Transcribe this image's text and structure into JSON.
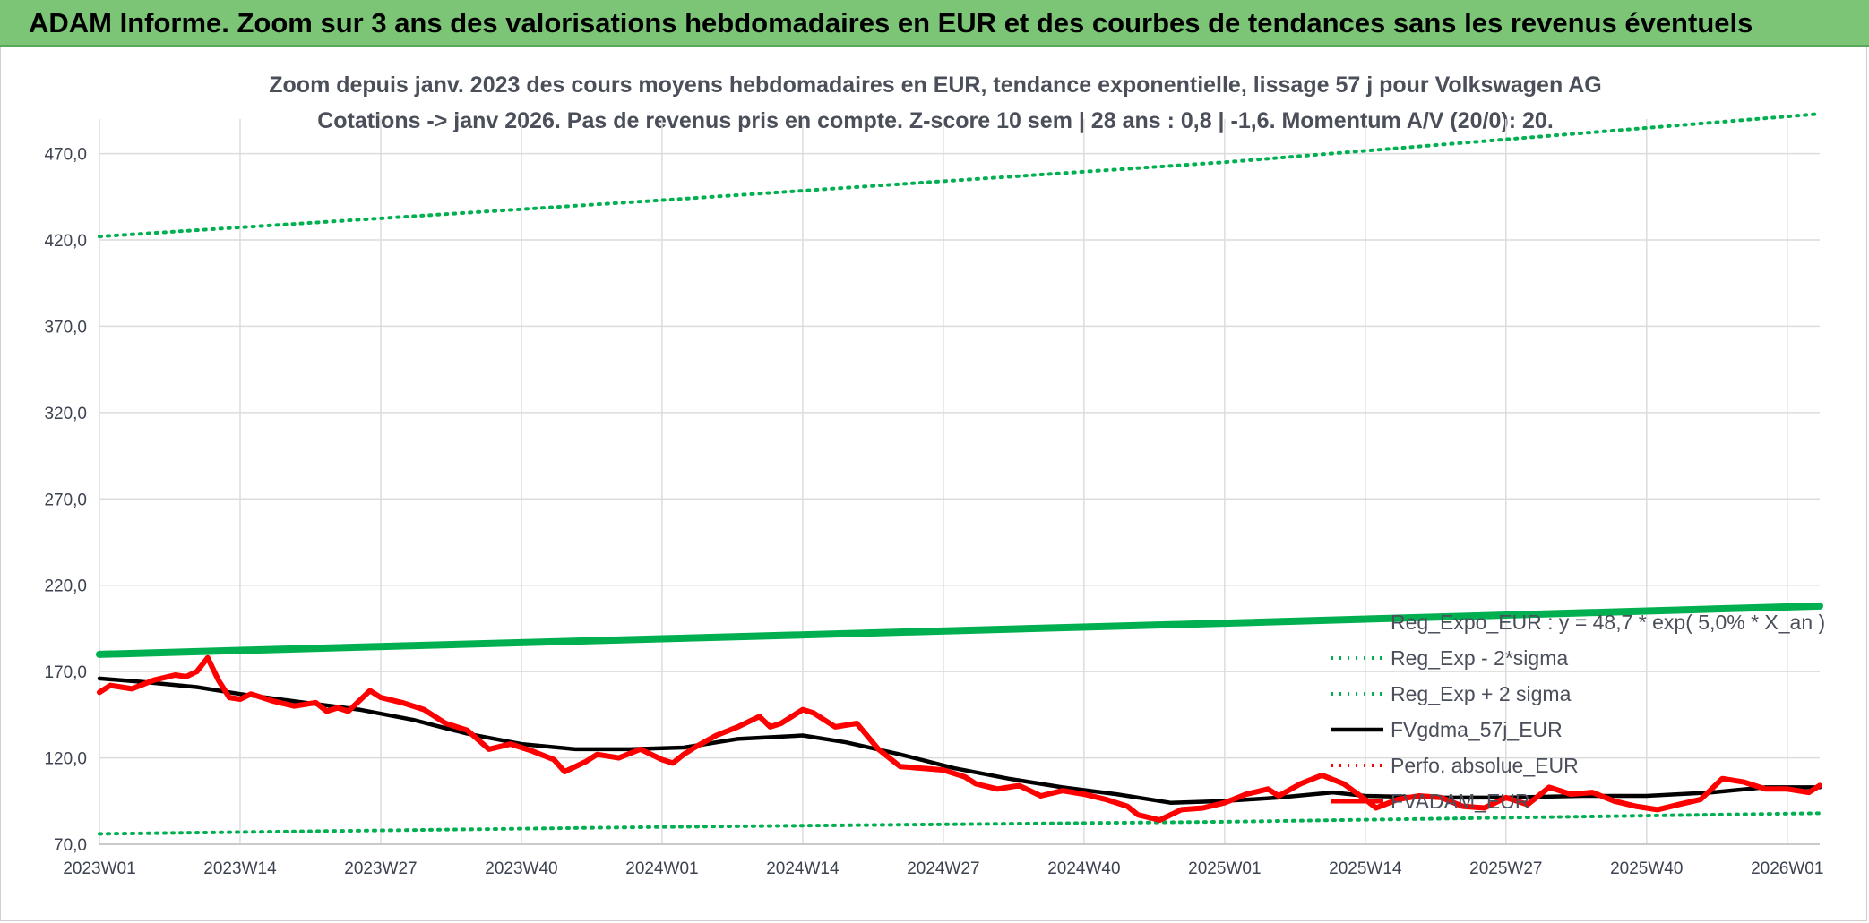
{
  "banner": {
    "title": "ADAM Informe. Zoom sur 3 ans des valorisations hebdomadaires en EUR et des courbes de tendances sans les revenus éventuels"
  },
  "chart_data": {
    "type": "line",
    "title": "",
    "subtitle_lines": [
      "Zoom depuis janv. 2023 des cours moyens hebdomadaires en EUR, tendance exponentielle, lissage 57 j pour Volkswagen AG",
      "Cotations -> janv 2026. Pas de revenus pris en compte. Z-score 10 sem | 28 ans : 0,8 | -1,6. Momentum A/V (20/0): 20."
    ],
    "xlabel": "",
    "ylabel": "",
    "ylim": [
      70,
      490
    ],
    "yticks": [
      70,
      120,
      170,
      220,
      270,
      320,
      370,
      420,
      470
    ],
    "ytick_labels": [
      "70,0",
      "120,0",
      "170,0",
      "220,0",
      "270,0",
      "320,0",
      "370,0",
      "420,0",
      "470,0"
    ],
    "xlim_weeks": [
      1,
      160
    ],
    "xticks": [
      {
        "week": 1,
        "label": "2023W01"
      },
      {
        "week": 14,
        "label": "2023W14"
      },
      {
        "week": 27,
        "label": "2023W27"
      },
      {
        "week": 40,
        "label": "2023W40"
      },
      {
        "week": 53,
        "label": "2024W01"
      },
      {
        "week": 66,
        "label": "2024W14"
      },
      {
        "week": 79,
        "label": "2024W27"
      },
      {
        "week": 92,
        "label": "2024W40"
      },
      {
        "week": 105,
        "label": "2025W01"
      },
      {
        "week": 118,
        "label": "2025W14"
      },
      {
        "week": 131,
        "label": "2025W27"
      },
      {
        "week": 144,
        "label": "2025W40"
      },
      {
        "week": 157,
        "label": "2026W01"
      }
    ],
    "grid": true,
    "legend_position": "bottom-right",
    "series": [
      {
        "name": "Reg_Expo_EUR : y = 48,7 * exp( 5,0% * X_an )",
        "style": "solid-thick",
        "color": "#00b050",
        "x": [
          1,
          53,
          105,
          160
        ],
        "y": [
          180,
          189,
          198,
          208
        ]
      },
      {
        "name": "Reg_Exp - 2*sigma",
        "style": "dotted",
        "color": "#00b050",
        "x": [
          1,
          53,
          105,
          160
        ],
        "y": [
          76,
          80,
          83,
          88
        ]
      },
      {
        "name": "Reg_Exp + 2 sigma",
        "style": "dotted",
        "color": "#00b050",
        "x": [
          1,
          53,
          105,
          160
        ],
        "y": [
          422,
          443,
          465,
          493
        ]
      },
      {
        "name": "FVgdma_57j_EUR",
        "style": "solid",
        "color": "#000000",
        "x": [
          1,
          5,
          10,
          14,
          20,
          25,
          30,
          35,
          40,
          45,
          50,
          55,
          60,
          66,
          70,
          75,
          80,
          85,
          90,
          95,
          100,
          105,
          110,
          115,
          118,
          125,
          131,
          138,
          144,
          150,
          155,
          160
        ],
        "y": [
          166,
          164,
          161,
          157,
          152,
          148,
          142,
          134,
          128,
          125,
          125,
          126,
          131,
          133,
          129,
          122,
          114,
          108,
          103,
          99,
          94,
          95,
          97,
          100,
          98,
          97,
          97,
          98,
          98,
          100,
          103,
          103
        ]
      },
      {
        "name": "Perfo. absolue_EUR",
        "style": "dotted",
        "color": "#ff0000",
        "x": [],
        "y": []
      },
      {
        "name": "FVADAM_EUR",
        "style": "solid-thick",
        "color": "#ff0000",
        "x": [
          1,
          2,
          3,
          4,
          6,
          8,
          9,
          10,
          11,
          12,
          13,
          14,
          15,
          17,
          19,
          21,
          22,
          23,
          24,
          26,
          27,
          29,
          31,
          33,
          35,
          37,
          39,
          41,
          43,
          44,
          46,
          47,
          49,
          51,
          53,
          54,
          55,
          56,
          58,
          60,
          62,
          63,
          64,
          65,
          66,
          67,
          69,
          71,
          73,
          75,
          77,
          79,
          81,
          82,
          84,
          86,
          88,
          90,
          92,
          94,
          96,
          97,
          99,
          101,
          103,
          105,
          107,
          109,
          110,
          112,
          114,
          116,
          118,
          119,
          121,
          123,
          125,
          127,
          129,
          131,
          133,
          135,
          137,
          139,
          141,
          143,
          145,
          147,
          149,
          151,
          153,
          155,
          157,
          159,
          160
        ],
        "y": [
          158,
          162,
          161,
          160,
          165,
          168,
          167,
          170,
          178,
          165,
          155,
          154,
          157,
          153,
          150,
          152,
          147,
          149,
          147,
          159,
          155,
          152,
          148,
          140,
          136,
          125,
          128,
          124,
          119,
          112,
          118,
          122,
          120,
          125,
          119,
          117,
          122,
          126,
          133,
          138,
          144,
          138,
          140,
          144,
          148,
          146,
          138,
          140,
          125,
          115,
          114,
          113,
          109,
          105,
          102,
          104,
          98,
          101,
          99,
          96,
          92,
          87,
          84,
          90,
          91,
          94,
          99,
          102,
          98,
          105,
          110,
          105,
          96,
          91,
          96,
          98,
          97,
          92,
          91,
          97,
          93,
          103,
          99,
          100,
          95,
          92,
          90,
          93,
          96,
          108,
          106,
          102,
          102,
          100,
          104
        ]
      }
    ]
  }
}
